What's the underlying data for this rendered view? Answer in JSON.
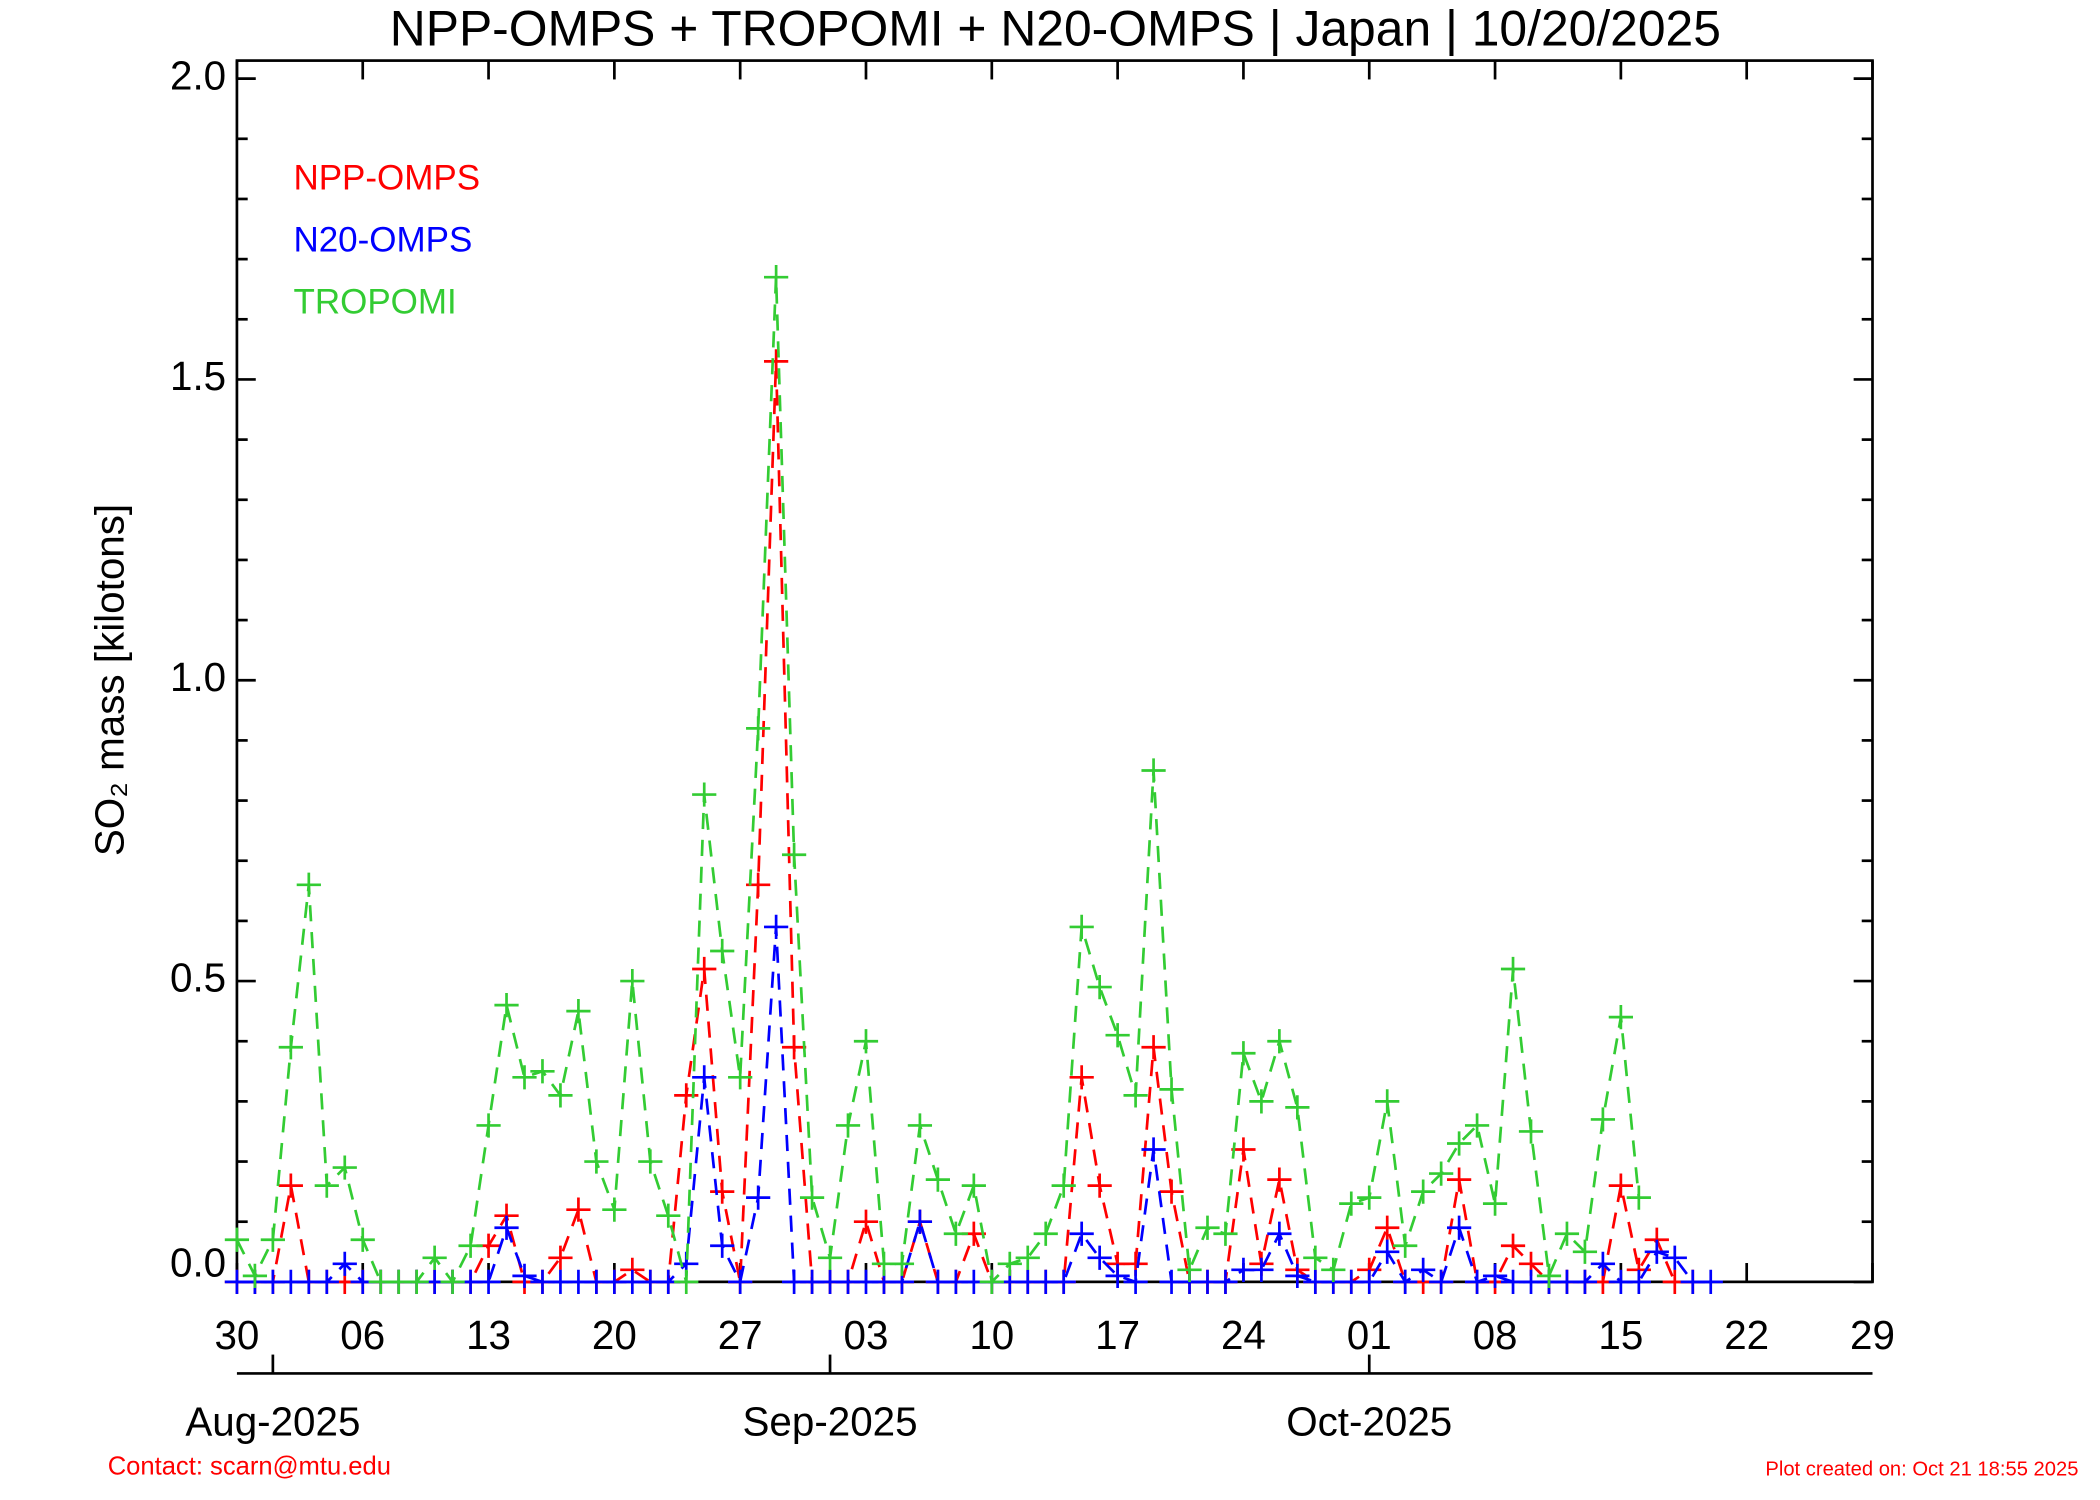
{
  "chart_data": {
    "type": "line",
    "title": "NPP-OMPS + TROPOMI + N20-OMPS | Japan | 10/20/2025",
    "ylabel": "SO₂ mass [kilotons]",
    "footer_left": "Contact: scarn@mtu.edu",
    "footer_right": "Plot created on: Oct 21 18:55 2025",
    "ylim": [
      0,
      2.03
    ],
    "yticks": [
      {
        "value": 0,
        "label": "0.0"
      },
      {
        "value": 0.5,
        "label": "0.5"
      },
      {
        "value": 1,
        "label": "1.0"
      },
      {
        "value": 1.5,
        "label": "1.5"
      },
      {
        "value": 2,
        "label": "2.0"
      }
    ],
    "yminorticks": [
      0.1,
      0.2,
      0.3,
      0.4,
      0.6,
      0.7,
      0.8,
      0.9,
      1.1,
      1.2,
      1.3,
      1.4,
      1.6,
      1.7,
      1.8,
      1.9
    ],
    "xlim": [
      "2025-07-30",
      "2025-10-29"
    ],
    "xticks": [
      {
        "value": "2025-07-30",
        "label": "30"
      },
      {
        "value": "2025-08-06",
        "label": "06"
      },
      {
        "value": "2025-08-13",
        "label": "13"
      },
      {
        "value": "2025-08-20",
        "label": "20"
      },
      {
        "value": "2025-08-27",
        "label": "27"
      },
      {
        "value": "2025-09-03",
        "label": "03"
      },
      {
        "value": "2025-09-10",
        "label": "10"
      },
      {
        "value": "2025-09-17",
        "label": "17"
      },
      {
        "value": "2025-09-24",
        "label": "24"
      },
      {
        "value": "2025-10-01",
        "label": "01"
      },
      {
        "value": "2025-10-08",
        "label": "08"
      },
      {
        "value": "2025-10-15",
        "label": "15"
      },
      {
        "value": "2025-10-22",
        "label": "22"
      },
      {
        "value": "2025-10-29",
        "label": "29"
      }
    ],
    "month_ticks": [
      {
        "value": "2025-08-01",
        "label": "Aug-2025"
      },
      {
        "value": "2025-09-01",
        "label": "Sep-2025"
      },
      {
        "value": "2025-10-01",
        "label": "Oct-2025"
      }
    ],
    "x": [
      "2025-07-30",
      "2025-07-31",
      "2025-08-01",
      "2025-08-02",
      "2025-08-03",
      "2025-08-04",
      "2025-08-05",
      "2025-08-06",
      "2025-08-07",
      "2025-08-08",
      "2025-08-09",
      "2025-08-10",
      "2025-08-11",
      "2025-08-12",
      "2025-08-13",
      "2025-08-14",
      "2025-08-15",
      "2025-08-16",
      "2025-08-17",
      "2025-08-18",
      "2025-08-19",
      "2025-08-20",
      "2025-08-21",
      "2025-08-22",
      "2025-08-23",
      "2025-08-24",
      "2025-08-25",
      "2025-08-26",
      "2025-08-27",
      "2025-08-28",
      "2025-08-29",
      "2025-08-30",
      "2025-08-31",
      "2025-09-01",
      "2025-09-02",
      "2025-09-03",
      "2025-09-04",
      "2025-09-05",
      "2025-09-06",
      "2025-09-07",
      "2025-09-08",
      "2025-09-09",
      "2025-09-10",
      "2025-09-11",
      "2025-09-12",
      "2025-09-13",
      "2025-09-14",
      "2025-09-15",
      "2025-09-16",
      "2025-09-17",
      "2025-09-18",
      "2025-09-19",
      "2025-09-20",
      "2025-09-21",
      "2025-09-22",
      "2025-09-23",
      "2025-09-24",
      "2025-09-25",
      "2025-09-26",
      "2025-09-27",
      "2025-09-28",
      "2025-09-29",
      "2025-09-30",
      "2025-10-01",
      "2025-10-02",
      "2025-10-03",
      "2025-10-04",
      "2025-10-05",
      "2025-10-06",
      "2025-10-07",
      "2025-10-08",
      "2025-10-09",
      "2025-10-10",
      "2025-10-11",
      "2025-10-12",
      "2025-10-13",
      "2025-10-14",
      "2025-10-15",
      "2025-10-16",
      "2025-10-17",
      "2025-10-18",
      "2025-10-19",
      "2025-10-20"
    ],
    "series": [
      {
        "name": "NPP-OMPS",
        "color": "#ff0000",
        "values": [
          0,
          0,
          0,
          0.16,
          0,
          0,
          0,
          0,
          0,
          0,
          0,
          0,
          0,
          0,
          0.06,
          0.11,
          0,
          0,
          0.04,
          0.12,
          0,
          0,
          0.02,
          0,
          0,
          0.31,
          0.52,
          0.15,
          0,
          0.66,
          1.53,
          0.39,
          0,
          0,
          0,
          0.1,
          0,
          0,
          0.1,
          0,
          0,
          0.08,
          0,
          0,
          0,
          0,
          0,
          0.34,
          0.16,
          0.03,
          0.03,
          0.39,
          0.15,
          0,
          0,
          0,
          0.22,
          0.03,
          0.17,
          0.02,
          0,
          0,
          0,
          0.02,
          0.09,
          0,
          0,
          0,
          0.17,
          0,
          0,
          0.06,
          0.03,
          0,
          0,
          0,
          0,
          0.16,
          0.02,
          0.07,
          0,
          0,
          null
        ]
      },
      {
        "name": "N20-OMPS",
        "color": "#0000ff",
        "values": [
          0,
          0,
          0,
          0,
          0,
          0,
          0.03,
          0,
          0,
          0,
          0,
          0,
          0,
          0,
          0,
          0.09,
          0.01,
          0,
          0,
          0,
          0,
          0,
          0,
          0,
          0,
          0.03,
          0.34,
          0.06,
          0,
          0.14,
          0.59,
          0,
          0,
          0,
          0,
          0,
          0,
          0,
          0.1,
          0,
          0,
          0,
          0,
          0,
          0,
          0,
          0,
          0.08,
          0.04,
          0.01,
          0,
          0.22,
          0,
          0,
          0,
          0,
          0.02,
          0.02,
          0.08,
          0.01,
          0,
          0,
          0,
          0,
          0.05,
          0,
          0.02,
          0,
          0.09,
          0,
          0.01,
          0,
          0,
          0,
          0,
          0,
          0.03,
          0,
          0,
          0.05,
          0.04,
          0,
          0
        ]
      },
      {
        "name": "TROPOMI",
        "color": "#33cc33",
        "values": [
          0.07,
          0.01,
          0.07,
          0.39,
          0.66,
          0.16,
          0.19,
          0.07,
          0,
          0,
          0,
          0.04,
          0,
          0.06,
          0.26,
          0.46,
          0.34,
          0.35,
          0.31,
          0.45,
          0.2,
          0.12,
          0.5,
          0.2,
          0.11,
          0,
          0.81,
          0.55,
          0.34,
          0.92,
          1.67,
          0.71,
          0.14,
          0.04,
          0.26,
          0.4,
          0.03,
          0.03,
          0.26,
          0.17,
          0.08,
          0.16,
          0,
          0.03,
          0.04,
          0.08,
          0.16,
          0.59,
          0.49,
          0.41,
          0.31,
          0.85,
          0.32,
          0.02,
          0.09,
          0.08,
          0.38,
          0.3,
          0.4,
          0.29,
          0.04,
          0.02,
          0.13,
          0.14,
          0.3,
          0.06,
          0.15,
          0.18,
          0.23,
          0.26,
          0.13,
          0.52,
          0.25,
          0.01,
          0.08,
          0.05,
          0.27,
          0.44,
          0.14,
          null,
          null,
          null,
          null
        ]
      }
    ]
  }
}
